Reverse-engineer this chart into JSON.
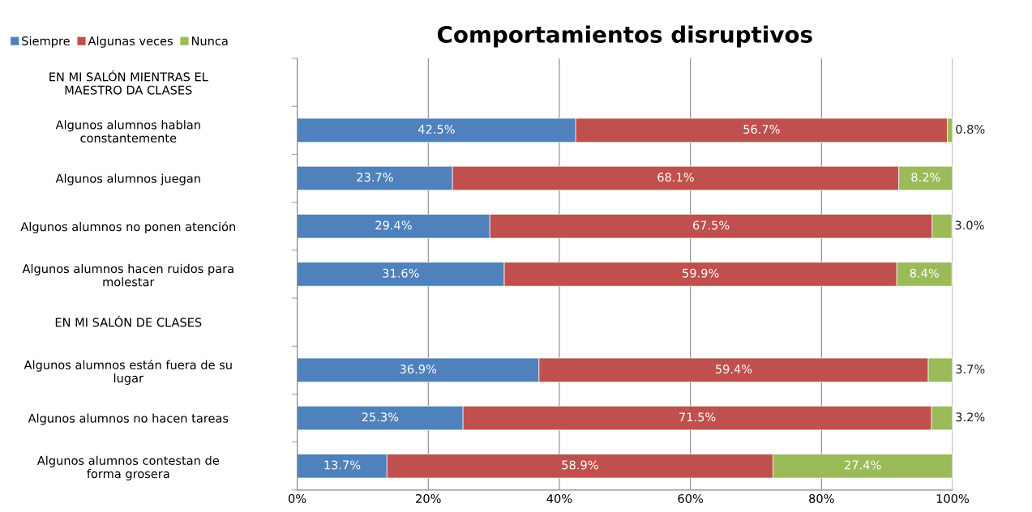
{
  "chart_data": {
    "type": "bar",
    "orientation": "horizontal",
    "stacked": true,
    "title": "Comportamientos disruptivos",
    "categories": [
      "EN MI SALÓN MIENTRAS EL\nMAESTRO DA CLASES",
      "Algunos alumnos hablan\nconstantemente",
      "Algunos alumnos juegan",
      "Algunos alumnos no ponen atención",
      "Algunos alumnos hacen ruidos para\nmolestar",
      "EN MI SALÓN DE CLASES",
      "Algunos alumnos están fuera de su\nlugar",
      "Algunos alumnos no hacen tareas",
      "Algunos alumnos contestan de\nforma grosera"
    ],
    "series": [
      {
        "name": "Siempre",
        "color": "#4f81bd",
        "values": [
          null,
          42.5,
          23.7,
          29.4,
          31.6,
          null,
          36.9,
          25.3,
          13.7
        ],
        "value_labels": [
          null,
          "42.5%",
          "23.7%",
          "29.4%",
          "31.6%",
          null,
          "36.9%",
          "25.3%",
          "13.7%"
        ]
      },
      {
        "name": "Algunas veces",
        "color": "#c0504d",
        "values": [
          null,
          56.7,
          68.1,
          67.5,
          59.9,
          null,
          59.4,
          71.5,
          58.9
        ],
        "value_labels": [
          null,
          "56.7%",
          "68.1%",
          "67.5%",
          "59.9%",
          null,
          "59.4%",
          "71.5%",
          "58.9%"
        ]
      },
      {
        "name": "Nunca",
        "color": "#9bbb59",
        "values": [
          null,
          0.8,
          8.2,
          3.0,
          8.4,
          null,
          3.7,
          3.2,
          27.4
        ],
        "value_labels": [
          null,
          "0.8%",
          "8.2%",
          "3.0%",
          "8.4%",
          null,
          "3.7%",
          "3.2%",
          "27.4%"
        ]
      }
    ],
    "xlim": [
      0,
      100
    ],
    "xticks": [
      {
        "value": 0,
        "label": "0%"
      },
      {
        "value": 20,
        "label": "20%"
      },
      {
        "value": 40,
        "label": "40%"
      },
      {
        "value": 60,
        "label": "60%"
      },
      {
        "value": 80,
        "label": "80%"
      },
      {
        "value": 100,
        "label": "100%"
      }
    ],
    "grid": "x",
    "legend": "top left"
  }
}
